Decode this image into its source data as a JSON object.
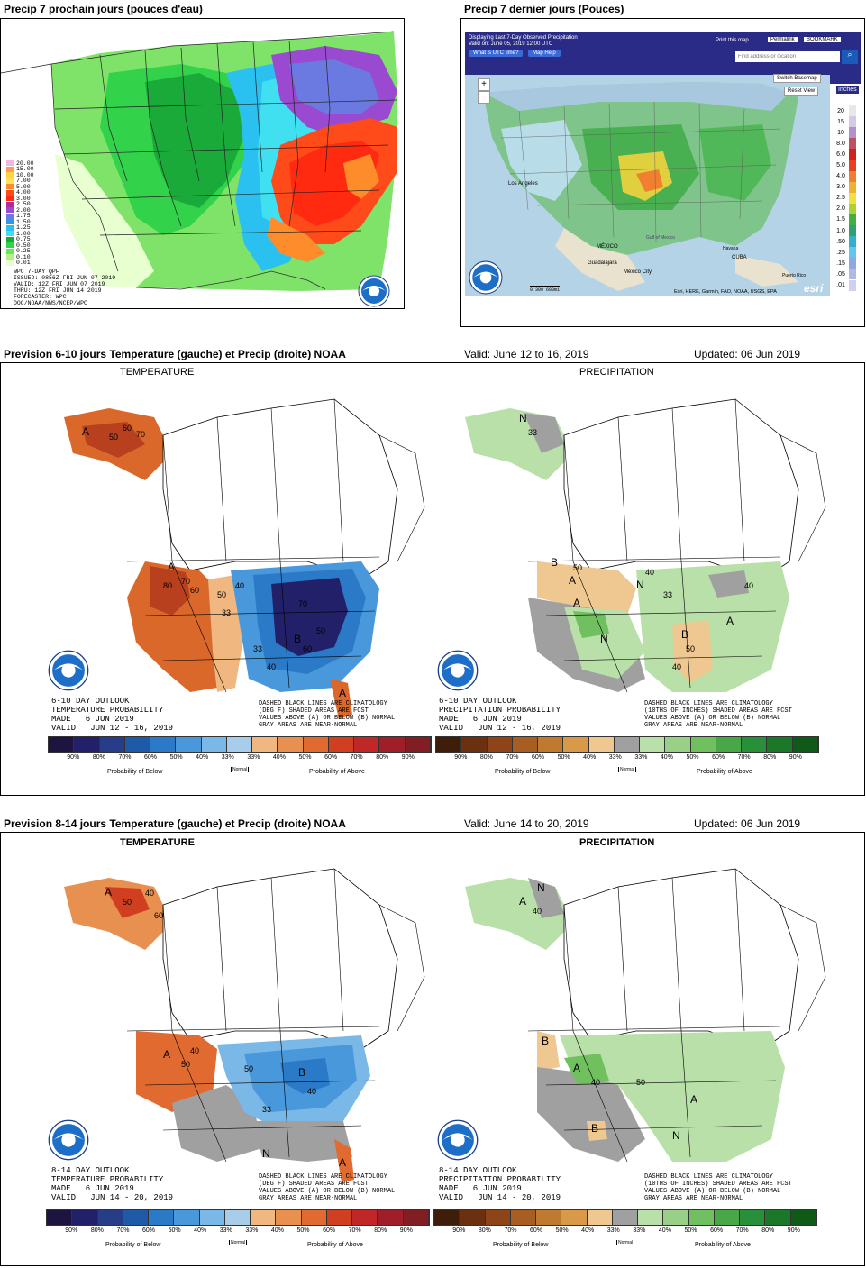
{
  "top_left": {
    "title": "Precip 7 prochain jours (pouces d'eau)",
    "legend": [
      {
        "v": "20.00",
        "c": "#f3b6e0"
      },
      {
        "v": "15.00",
        "c": "#ff9a5a"
      },
      {
        "v": "10.00",
        "c": "#ffd43a"
      },
      {
        "v": "7.00",
        "c": "#ffe25a"
      },
      {
        "v": "5.00",
        "c": "#ff8c2a"
      },
      {
        "v": "4.00",
        "c": "#ff4a1a"
      },
      {
        "v": "3.00",
        "c": "#ff2a10"
      },
      {
        "v": "2.50",
        "c": "#b02a9a"
      },
      {
        "v": "2.00",
        "c": "#9a4ad0"
      },
      {
        "v": "1.75",
        "c": "#6a7ae0"
      },
      {
        "v": "1.50",
        "c": "#2a9ae8"
      },
      {
        "v": "1.25",
        "c": "#2ac0f0"
      },
      {
        "v": "1.00",
        "c": "#40e0f0"
      },
      {
        "v": "0.75",
        "c": "#1aaa3a"
      },
      {
        "v": "0.50",
        "c": "#32d24a"
      },
      {
        "v": "0.25",
        "c": "#6ae85a"
      },
      {
        "v": "0.10",
        "c": "#b4f08a"
      },
      {
        "v": "0.01",
        "c": "#e8ffd0"
      }
    ],
    "info": "WPC 7-DAY QPF\nISSUED: 0856Z FRI JUN 07 2019\nVALID: 12Z FRI JUN 07 2019\nTHRU: 12Z FRI JUN 14 2019\nFORECASTER: WPC\nDOC/NOAA/NWS/NCEP/WPC"
  },
  "top_right": {
    "title": "Precip 7 dernier jours (Pouces)",
    "toolbar_line1": "Displaying Last 7-Day Observed Precipitation",
    "toolbar_line2": "Valid on: June 05, 2019 12:00 UTC",
    "btn_utc": "What is UTC time?",
    "btn_help": "Map Help",
    "print": "Print this map",
    "permalink": "Permalink",
    "bookmark": "BOOKMARK",
    "search_placeholder": "Find address or location",
    "switch_basemap": "Switch Basemap",
    "reset_view": "Reset View",
    "units": "Inches",
    "scale_values": [
      "20",
      "15",
      "10",
      "8.0",
      "6.0",
      "5.0",
      "4.0",
      "3.0",
      "2.5",
      "2.0",
      "1.5",
      "1.0",
      ".50",
      ".25",
      ".15",
      ".05",
      ".01"
    ],
    "scale_colors": [
      "#e8e8e8",
      "#d8c8e8",
      "#b090d0",
      "#c05060",
      "#d02020",
      "#e84020",
      "#f08030",
      "#f0b030",
      "#f0e040",
      "#b0d030",
      "#40b040",
      "#30a070",
      "#30b0d0",
      "#60c8f0",
      "#90a8e0",
      "#b0b8e8",
      "#d0d0f0"
    ],
    "attribution": "Esri, HERE, Garmin, FAO, NOAA, USGS, EPA",
    "scalebar": "0     300    600mi",
    "labels": {
      "los_angeles": "Los Angeles",
      "mexico": "MÉXICO",
      "guadalajara": "Guadalajara",
      "mexico_city": "México City",
      "cuba": "CUBA",
      "puerto_rico": "Puerto Rico",
      "gulf": "Gulf of Mexico",
      "havana": "Havana"
    }
  },
  "section1": {
    "title": "Prevision 6-10 jours Temperature (gauche) et Precip (droite) NOAA",
    "valid": "Valid: June 12 to 16, 2019",
    "updated": "Updated: 06 Jun 2019",
    "temp_label": "TEMPERATURE",
    "precip_label": "PRECIPITATION",
    "temp_text": "6-10 DAY OUTLOOK\nTEMPERATURE PROBABILITY\nMADE   6 JUN 2019\nVALID   JUN 12 - 16, 2019",
    "precip_text": "6-10 DAY OUTLOOK\nPRECIPITATION PROBABILITY\nMADE   6 JUN 2019\nVALID   JUN 12 - 16, 2019",
    "temp_note": "DASHED BLACK LINES ARE CLIMATOLOGY\n(DEG F) SHADED AREAS ARE FCST\nVALUES ABOVE (A) OR BELOW (B) NORMAL\nGRAY AREAS ARE NEAR-NORMAL",
    "precip_note": "DASHED BLACK LINES ARE CLIMATOLOGY\n(10THS OF INCHES) SHADED AREAS ARE FCST\nVALUES ABOVE (A) OR BELOW (B) NORMAL\nGRAY AREAS ARE NEAR-NORMAL"
  },
  "section2": {
    "title": "Prevision 8-14 jours Temperature (gauche) et Precip (droite) NOAA",
    "valid": "Valid: June 14 to 20, 2019",
    "updated": "Updated: 06 Jun 2019",
    "temp_label": "TEMPERATURE",
    "precip_label": "PRECIPITATION",
    "temp_text": "8-14 DAY OUTLOOK\nTEMPERATURE PROBABILITY\nMADE   6 JUN 2019\nVALID   JUN 14 - 20, 2019",
    "precip_text": "8-14 DAY OUTLOOK\nPRECIPITATION PROBABILITY\nMADE   6 JUN 2019\nVALID   JUN 14 - 20, 2019",
    "temp_note": "DASHED BLACK LINES ARE CLIMATOLOGY\n(DEG F) SHADED AREAS ARE FCST\nVALUES ABOVE (A) OR BELOW (B) NORMAL\nGRAY AREAS ARE NEAR-NORMAL",
    "precip_note": "DASHED BLACK LINES ARE CLIMATOLOGY\n(10THS OF INCHES) SHADED AREAS ARE FCST\nVALUES ABOVE (A) OR BELOW (B) NORMAL\nGRAY AREAS ARE NEAR-NORMAL"
  },
  "prob_scale": {
    "ticks": [
      "90%",
      "80%",
      "70%",
      "60%",
      "50%",
      "40%",
      "33%",
      "33%",
      "40%",
      "50%",
      "60%",
      "70%",
      "80%",
      "90%"
    ],
    "below": "Probability of Below",
    "normal": "Normal",
    "above": "Probability of Above",
    "temp_colors": [
      "#1e1440",
      "#23206a",
      "#283d8a",
      "#1e5aa8",
      "#2a7ac8",
      "#4a98dc",
      "#7ab8e8",
      "#a8cdea",
      "#f0b880",
      "#e89050",
      "#e06a30",
      "#d04020",
      "#c02828",
      "#a01e28",
      "#801e24"
    ],
    "precip_colors": [
      "#3e1e0a",
      "#6a3010",
      "#8e4418",
      "#a85e22",
      "#c07a30",
      "#d89a48",
      "#eec890",
      "#a0a0a0",
      "#b8e0a8",
      "#98d088",
      "#70c060",
      "#48a848",
      "#289038",
      "#1a7828",
      "#105a18"
    ]
  },
  "map_values": {
    "s1_temp": [
      "A",
      "50",
      "60",
      "70",
      "A",
      "80",
      "70",
      "60",
      "50",
      "40",
      "33",
      "B",
      "70",
      "50",
      "60",
      "A",
      "33",
      "40"
    ],
    "s1_precip": [
      "N",
      "33",
      "A",
      "B",
      "50",
      "40",
      "A",
      "N",
      "B",
      "50",
      "40",
      "A",
      "N",
      "40",
      "33"
    ],
    "s2_temp": [
      "A",
      "50",
      "40",
      "60",
      "A",
      "50",
      "40",
      "50",
      "B",
      "40",
      "33",
      "N",
      "A"
    ],
    "s2_precip": [
      "N",
      "A",
      "40",
      "B",
      "A",
      "40",
      "B",
      "50",
      "A",
      "N"
    ]
  }
}
